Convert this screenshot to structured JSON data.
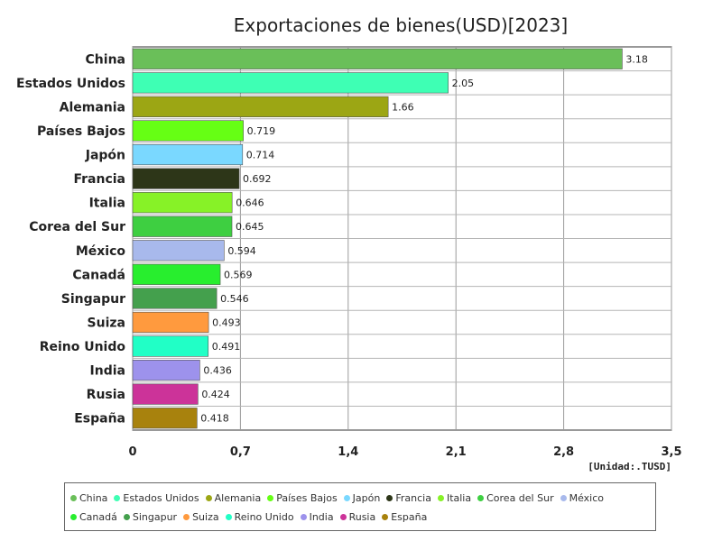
{
  "chart_data": {
    "type": "bar",
    "orientation": "horizontal",
    "title": "Exportaciones de bienes(USD)[2023]",
    "unit_label": "[Unidad:.TUSD]",
    "xlim": [
      0,
      3.5
    ],
    "xticks": [
      "0",
      "0,7",
      "1,4",
      "2,1",
      "2,8",
      "3,5"
    ],
    "grid": true,
    "legend_position": "bottom",
    "categories": [
      "China",
      "Estados Unidos",
      "Alemania",
      "Países Bajos",
      "Japón",
      "Francia",
      "Italia",
      "Corea del Sur",
      "México",
      "Canadá",
      "Singapur",
      "Suiza",
      "Reino Unido",
      "India",
      "Rusia",
      "España"
    ],
    "values": [
      3.18,
      2.05,
      1.66,
      0.719,
      0.714,
      0.692,
      0.646,
      0.645,
      0.594,
      0.569,
      0.546,
      0.493,
      0.491,
      0.436,
      0.424,
      0.418
    ],
    "value_labels": [
      "3.18",
      "2.05",
      "1.66",
      "0.719",
      "0.714",
      "0.692",
      "0.646",
      "0.645",
      "0.594",
      "0.569",
      "0.546",
      "0.493",
      "0.491",
      "0.436",
      "0.424",
      "0.418"
    ],
    "colors": [
      "#6abf59",
      "#3effb4",
      "#9ca614",
      "#66ff14",
      "#7ad8ff",
      "#2d3618",
      "#87f227",
      "#3ecf41",
      "#a8b9ec",
      "#28ee2e",
      "#44a04d",
      "#ff9a3e",
      "#21ffc6",
      "#9d92ec",
      "#cc3399",
      "#a8820d"
    ]
  }
}
